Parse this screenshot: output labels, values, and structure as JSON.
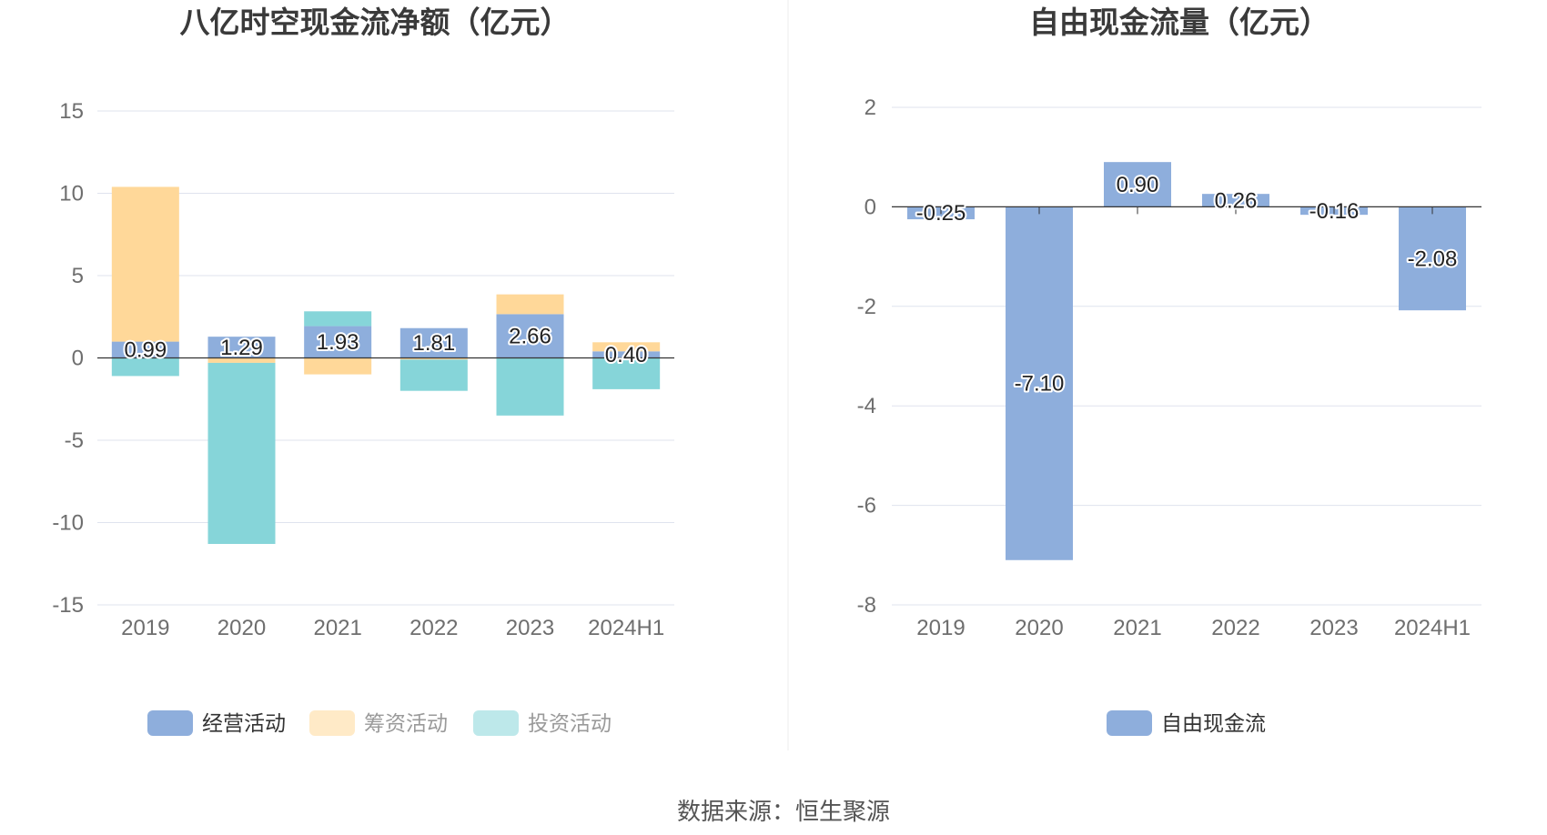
{
  "source_text": "数据来源：恒生聚源",
  "chart_data": [
    {
      "type": "bar",
      "stacked": true,
      "title": "八亿时空现金流净额（亿元）",
      "categories": [
        "2019",
        "2020",
        "2021",
        "2022",
        "2023",
        "2024H1"
      ],
      "ylim": [
        -15,
        15
      ],
      "yticks": [
        15,
        10,
        5,
        0,
        -5,
        -10,
        -15
      ],
      "grid": true,
      "legend_position": "bottom",
      "series": [
        {
          "name": "经营活动",
          "color": "#8eaedc",
          "values": [
            0.99,
            1.29,
            1.93,
            1.81,
            2.66,
            0.4
          ]
        },
        {
          "name": "筹资活动",
          "color": "#ffd899",
          "values": [
            9.4,
            -0.3,
            -1.0,
            -0.1,
            1.2,
            0.55
          ]
        },
        {
          "name": "投资活动",
          "color": "#86d5d9",
          "values": [
            -1.1,
            -11.0,
            0.9,
            -1.9,
            -3.5,
            -1.9
          ]
        }
      ],
      "data_labels": [
        "0.99",
        "1.29",
        "1.93",
        "1.81",
        "2.66",
        "0.40"
      ]
    },
    {
      "type": "bar",
      "title": "自由现金流量（亿元）",
      "categories": [
        "2019",
        "2020",
        "2021",
        "2022",
        "2023",
        "2024H1"
      ],
      "ylim": [
        -8,
        2
      ],
      "yticks": [
        2,
        0,
        -2,
        -4,
        -6,
        -8
      ],
      "grid": true,
      "legend_position": "bottom",
      "series": [
        {
          "name": "自由现金流",
          "color": "#8eaedc",
          "values": [
            -0.25,
            -7.1,
            0.9,
            0.26,
            -0.16,
            -2.08
          ]
        }
      ],
      "data_labels": [
        "-0.25",
        "-7.10",
        "0.90",
        "0.26",
        "-0.16",
        "-2.08"
      ]
    }
  ]
}
